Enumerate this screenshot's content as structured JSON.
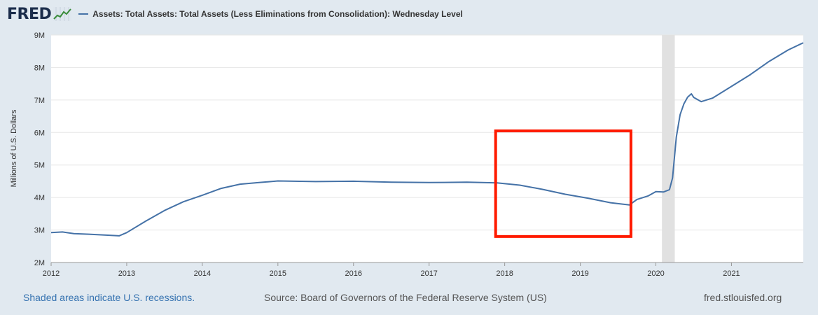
{
  "header": {
    "logo_text": "FRED",
    "logo_icon": "chart-line-icon",
    "series_title": "Assets: Total Assets: Total Assets (Less Eliminations from Consolidation): Wednesday Level"
  },
  "footer": {
    "recession_note": "Shaded areas indicate U.S. recessions.",
    "source": "Source: Board of Governors of the Federal Reserve System (US)",
    "site": "fred.stlouisfed.org"
  },
  "colors": {
    "background": "#e1e9f0",
    "plot_background": "#ffffff",
    "series_line": "#4572a7",
    "recession_shade": "#e1e1e1",
    "highlight_box": "#ff1a00",
    "footer_link": "#3572b0"
  },
  "chart_data": {
    "type": "line",
    "title": "Assets: Total Assets: Total Assets (Less Eliminations from Consolidation): Wednesday Level",
    "ylabel": "Millions of U.S. Dollars",
    "xlabel": "",
    "xlim": [
      2012,
      2021.95
    ],
    "ylim": [
      2000000,
      9000000
    ],
    "x_ticks": [
      2012,
      2013,
      2014,
      2015,
      2016,
      2017,
      2018,
      2019,
      2020,
      2021
    ],
    "x_tick_labels": [
      "2012",
      "2013",
      "2014",
      "2015",
      "2016",
      "2017",
      "2018",
      "2019",
      "2020",
      "2021"
    ],
    "y_ticks": [
      2000000,
      3000000,
      4000000,
      5000000,
      6000000,
      7000000,
      8000000,
      9000000
    ],
    "y_tick_labels": [
      "2M",
      "3M",
      "4M",
      "5M",
      "6M",
      "7M",
      "8M",
      "9M"
    ],
    "grid": true,
    "recessions": [
      {
        "start": 2020.08,
        "end": 2020.25
      }
    ],
    "highlight_box": {
      "x_start": 2017.88,
      "x_end": 2019.67,
      "y_low": 2800000,
      "y_high": 6050000
    },
    "series": [
      {
        "x": [
          2012.0,
          2012.15,
          2012.3,
          2012.5,
          2012.75,
          2012.9,
          2013.0,
          2013.25,
          2013.5,
          2013.75,
          2014.0,
          2014.25,
          2014.5,
          2014.75,
          2015.0,
          2015.5,
          2016.0,
          2016.5,
          2017.0,
          2017.5,
          2017.9,
          2018.2,
          2018.5,
          2018.8,
          2019.1,
          2019.4,
          2019.65,
          2019.75,
          2019.9,
          2020.0,
          2020.1,
          2020.18,
          2020.22,
          2020.27,
          2020.32,
          2020.37,
          2020.42,
          2020.47,
          2020.5,
          2020.6,
          2020.75,
          2021.0,
          2021.25,
          2021.5,
          2021.75,
          2021.95
        ],
        "y": [
          2920000,
          2940000,
          2890000,
          2870000,
          2840000,
          2820000,
          2920000,
          3270000,
          3600000,
          3870000,
          4070000,
          4280000,
          4410000,
          4460000,
          4510000,
          4490000,
          4500000,
          4470000,
          4460000,
          4470000,
          4450000,
          4380000,
          4250000,
          4100000,
          3980000,
          3840000,
          3770000,
          3940000,
          4050000,
          4180000,
          4170000,
          4240000,
          4600000,
          5860000,
          6550000,
          6880000,
          7090000,
          7190000,
          7080000,
          6950000,
          7060000,
          7420000,
          7780000,
          8190000,
          8540000,
          8760000
        ]
      }
    ]
  }
}
